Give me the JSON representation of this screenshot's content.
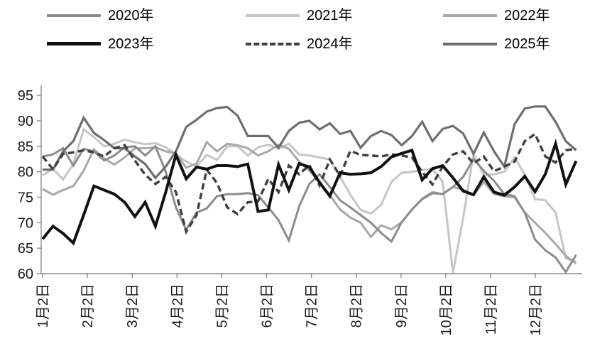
{
  "chart_data": {
    "type": "line",
    "title": "",
    "xlabel": "",
    "ylabel": "",
    "ylim": [
      60,
      95
    ],
    "yticks": [
      95,
      90,
      85,
      80,
      75,
      70,
      65,
      60
    ],
    "grid": false,
    "legend_position": "top",
    "axis_color": "#8c8c8c",
    "text_color": "#1a1a1a",
    "xticklabels": [
      "1月2日",
      "2月2日",
      "3月2日",
      "4月2日",
      "5月2日",
      "6月2日",
      "7月2日",
      "8月2日",
      "9月2日",
      "10月2日",
      "11月2日",
      "12月2日"
    ],
    "x_dates": [
      "1月2日",
      "1月9日",
      "1月16日",
      "1月23日",
      "1月30日",
      "2月6日",
      "2月13日",
      "2月20日",
      "2月27日",
      "3月6日",
      "3月13日",
      "3月20日",
      "3月27日",
      "4月3日",
      "4月10日",
      "4月17日",
      "4月24日",
      "5月1日",
      "5月8日",
      "5月15日",
      "5月22日",
      "5月29日",
      "6月5日",
      "6月12日",
      "6月19日",
      "6月26日",
      "7月3日",
      "7月10日",
      "7月17日",
      "7月24日",
      "7月31日",
      "8月7日",
      "8月14日",
      "8月21日",
      "8月28日",
      "9月4日",
      "9月11日",
      "9月18日",
      "9月25日",
      "10月2日",
      "10月9日",
      "10月16日",
      "10月23日",
      "10月30日",
      "11月6日",
      "11月13日",
      "11月20日",
      "11月27日",
      "12月4日",
      "12月11日",
      "12月18日",
      "12月25日",
      "12月31日"
    ],
    "series": [
      {
        "name": "2020年",
        "color": "#8c8c8c",
        "style": "solid",
        "width": 3,
        "values": [
          83.0,
          83.4,
          84.6,
          81.2,
          84.5,
          84.0,
          82.2,
          83.2,
          84.8,
          85.0,
          83.2,
          85.0,
          80.0,
          73.0,
          68.6,
          72.0,
          72.8,
          75.2,
          75.6,
          75.6,
          75.8,
          75.4,
          73.0,
          70.5,
          66.5,
          73.2,
          77.6,
          79.5,
          77.0,
          74.4,
          73.0,
          71.5,
          70.0,
          68.0,
          66.3,
          70.1,
          72.6,
          74.6,
          75.8,
          75.6,
          77.0,
          79.0,
          82.5,
          80.2,
          78.2,
          75.6,
          75.2,
          72.0,
          66.7,
          64.6,
          63.2,
          60.3,
          63.7
        ]
      },
      {
        "name": "2021年",
        "color": "#c6c6c6",
        "style": "solid",
        "width": 3,
        "values": [
          79.3,
          80.5,
          78.5,
          81.5,
          88.3,
          86.8,
          85.0,
          85.5,
          86.3,
          85.8,
          85.4,
          85.6,
          84.8,
          83.4,
          82.0,
          81.0,
          83.3,
          82.3,
          85.0,
          85.0,
          83.2,
          84.8,
          85.3,
          84.5,
          85.5,
          83.4,
          83.2,
          82.8,
          82.4,
          79.0,
          75.5,
          72.5,
          71.8,
          73.5,
          78.0,
          79.8,
          80.0,
          80.3,
          80.6,
          78.0,
          60.2,
          71.0,
          83.5,
          79.4,
          79.5,
          80.0,
          82.8,
          79.5,
          74.6,
          74.4,
          72.0,
          63.0,
          62.3
        ]
      },
      {
        "name": "2022年",
        "color": "#a8a8a8",
        "style": "solid",
        "width": 3,
        "values": [
          76.6,
          75.5,
          76.4,
          77.2,
          80.2,
          84.4,
          82.6,
          81.4,
          82.8,
          84.6,
          84.6,
          84.8,
          84.0,
          83.6,
          80.8,
          81.6,
          85.8,
          84.0,
          85.5,
          85.2,
          84.6,
          83.2,
          84.0,
          85.3,
          84.5,
          82.0,
          80.2,
          78.0,
          75.4,
          72.6,
          71.0,
          70.0,
          67.2,
          69.5,
          68.7,
          70.1,
          72.6,
          74.7,
          76.0,
          75.6,
          77.0,
          76.5,
          75.4,
          78.0,
          75.6,
          75.2,
          75.0,
          72.0,
          70.0,
          68.0,
          65.8,
          63.5,
          62.0
        ]
      },
      {
        "name": "2023年",
        "color": "#111111",
        "style": "solid",
        "width": 4,
        "values": [
          66.8,
          69.3,
          67.9,
          66.0,
          71.5,
          77.2,
          76.4,
          75.6,
          74.0,
          71.2,
          74.0,
          69.3,
          76.0,
          83.3,
          78.6,
          80.9,
          80.5,
          81.2,
          81.2,
          81.0,
          81.5,
          72.2,
          72.5,
          81.4,
          76.4,
          81.6,
          80.9,
          77.9,
          75.2,
          79.8,
          79.5,
          79.6,
          79.8,
          81.0,
          82.9,
          83.6,
          84.2,
          78.4,
          80.6,
          81.2,
          78.8,
          76.2,
          75.5,
          79.0,
          76.0,
          75.4,
          77.0,
          79.1,
          76.1,
          79.5,
          85.5,
          77.5,
          82.1
        ]
      },
      {
        "name": "2024年",
        "color": "#404040",
        "style": "dashed",
        "width": 3.4,
        "values": [
          83.0,
          80.5,
          83.5,
          83.8,
          84.2,
          83.8,
          83.0,
          84.6,
          85.2,
          82.2,
          79.4,
          77.6,
          79.0,
          76.0,
          68.2,
          71.5,
          80.4,
          77.8,
          73.0,
          71.7,
          74.0,
          74.2,
          78.6,
          76.0,
          81.2,
          79.5,
          81.3,
          77.3,
          82.4,
          79.2,
          84.1,
          83.3,
          83.2,
          83.0,
          83.4,
          83.2,
          82.8,
          80.0,
          77.5,
          81.0,
          83.4,
          84.0,
          81.6,
          83.0,
          80.1,
          81.0,
          82.0,
          86.0,
          87.4,
          83.0,
          81.8,
          84.2,
          84.5
        ]
      },
      {
        "name": "2025年",
        "color": "#6e6e6e",
        "style": "solid",
        "width": 3.2,
        "values": [
          80.4,
          80.4,
          84.0,
          86.0,
          90.6,
          87.6,
          86.2,
          84.6,
          84.6,
          83.0,
          81.5,
          78.8,
          81.0,
          84.0,
          88.8,
          90.2,
          91.8,
          92.5,
          92.7,
          91.0,
          87.0,
          87.0,
          87.0,
          84.7,
          88.0,
          89.6,
          90.0,
          88.3,
          89.5,
          87.4,
          88.0,
          84.7,
          87.0,
          88.0,
          87.2,
          85.2,
          87.0,
          89.8,
          86.0,
          88.4,
          89.0,
          87.5,
          83.5,
          87.7,
          84.0,
          81.0,
          89.3,
          92.4,
          92.8,
          92.8,
          89.8,
          86.0,
          84.2
        ]
      }
    ]
  }
}
